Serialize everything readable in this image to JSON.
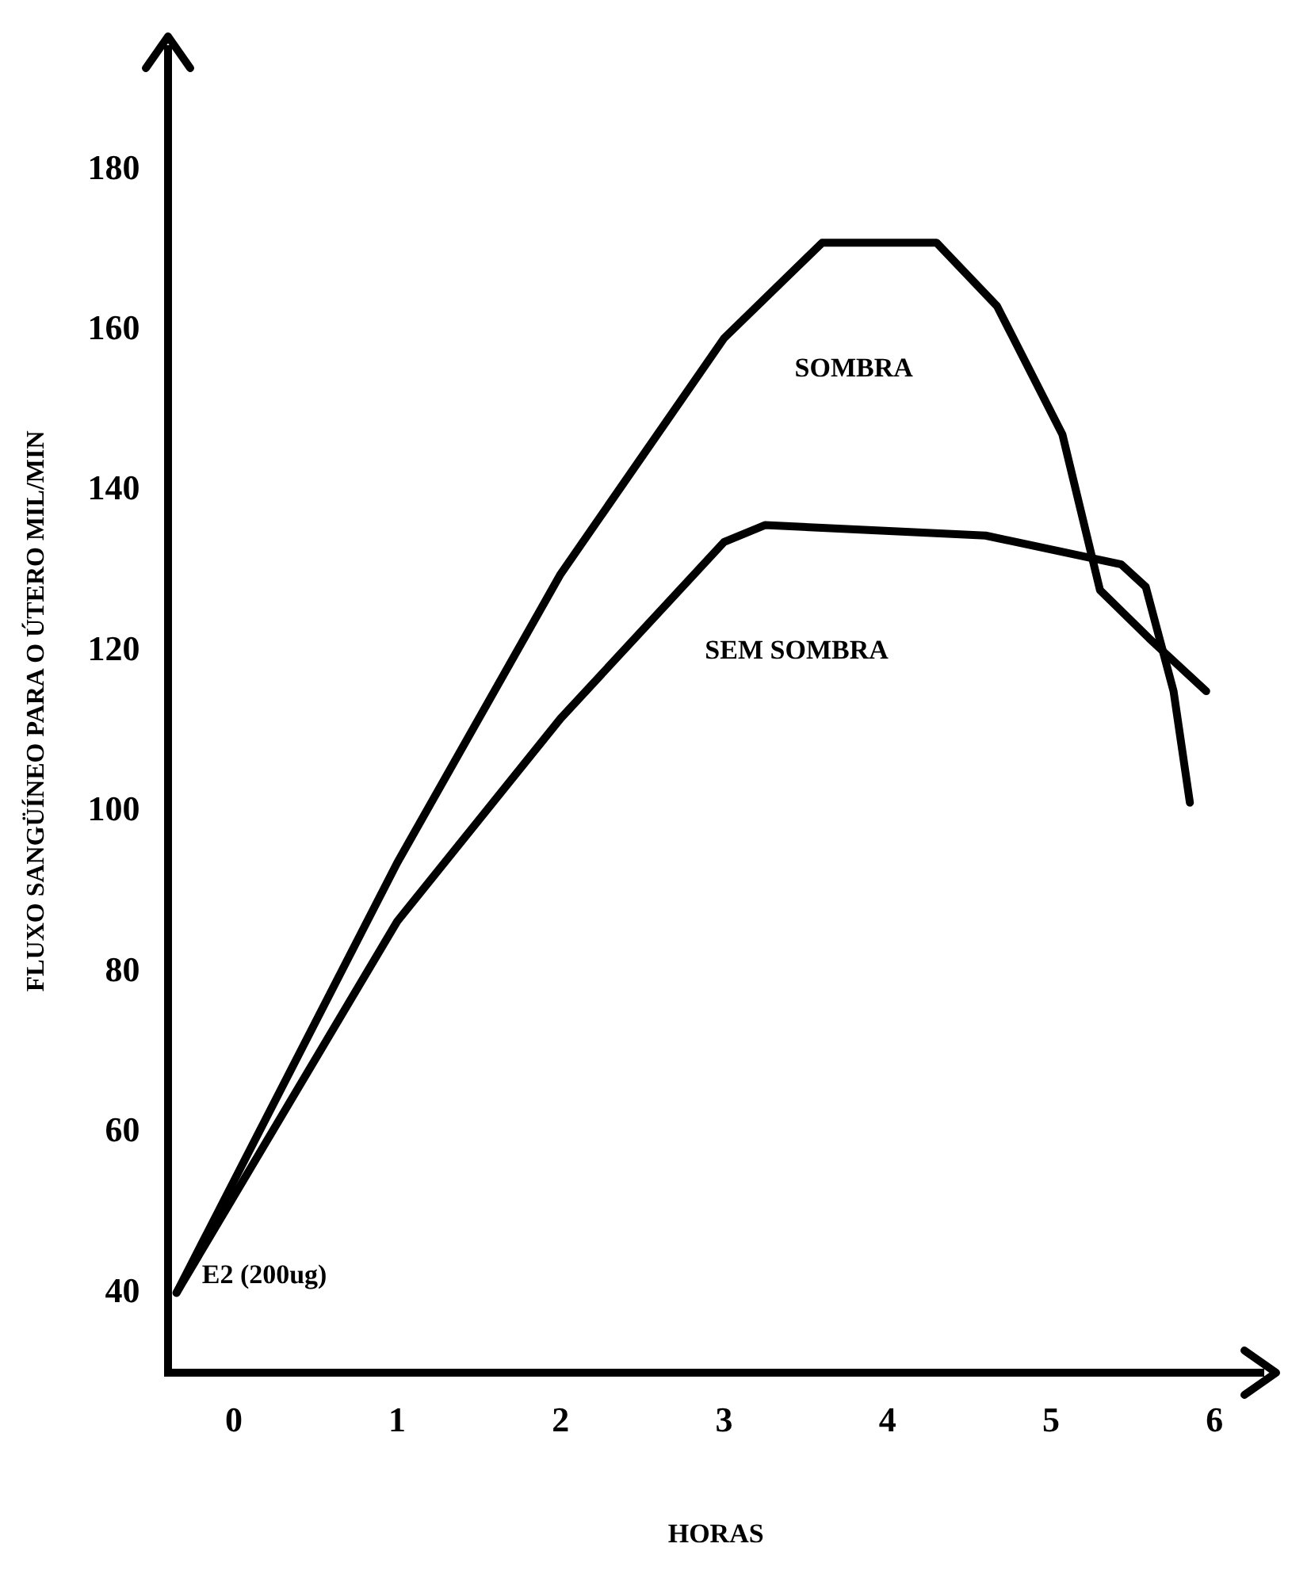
{
  "chart_data": {
    "type": "line",
    "xlabel": "HORAS",
    "ylabel": "FLUXO SANGÜÍNEO PARA O ÚTERO MIL/MIN",
    "xlim": [
      -0.4,
      6.3
    ],
    "ylim": [
      30,
      195
    ],
    "xticks": [
      0,
      1,
      2,
      3,
      4,
      5,
      6
    ],
    "yticks": [
      40,
      60,
      80,
      100,
      120,
      140,
      160,
      180
    ],
    "grid": false,
    "legend": false,
    "marker": "none",
    "line_style": "solid",
    "series": [
      {
        "name": "SOMBRA",
        "color": "#000000",
        "x": [
          -0.35,
          1,
          2,
          3,
          3.6,
          4.3,
          4.67,
          5.07,
          5.3,
          5.6,
          5.95
        ],
        "values": [
          40,
          93.6,
          129.6,
          159,
          170.9,
          170.9,
          163,
          147,
          127.6,
          121.6,
          115
        ]
      },
      {
        "name": "SEM SOMBRA",
        "color": "#000000",
        "x": [
          -0.35,
          1,
          2,
          3,
          3.25,
          4.6,
          5.43,
          5.58,
          5.75,
          5.85
        ],
        "values": [
          40,
          86.3,
          111.6,
          133.6,
          135.7,
          134.4,
          130.8,
          128,
          115,
          101.1
        ]
      }
    ],
    "annotations": [
      {
        "text": "E2 (200ug)",
        "x": -0.35,
        "y": 40
      }
    ]
  }
}
